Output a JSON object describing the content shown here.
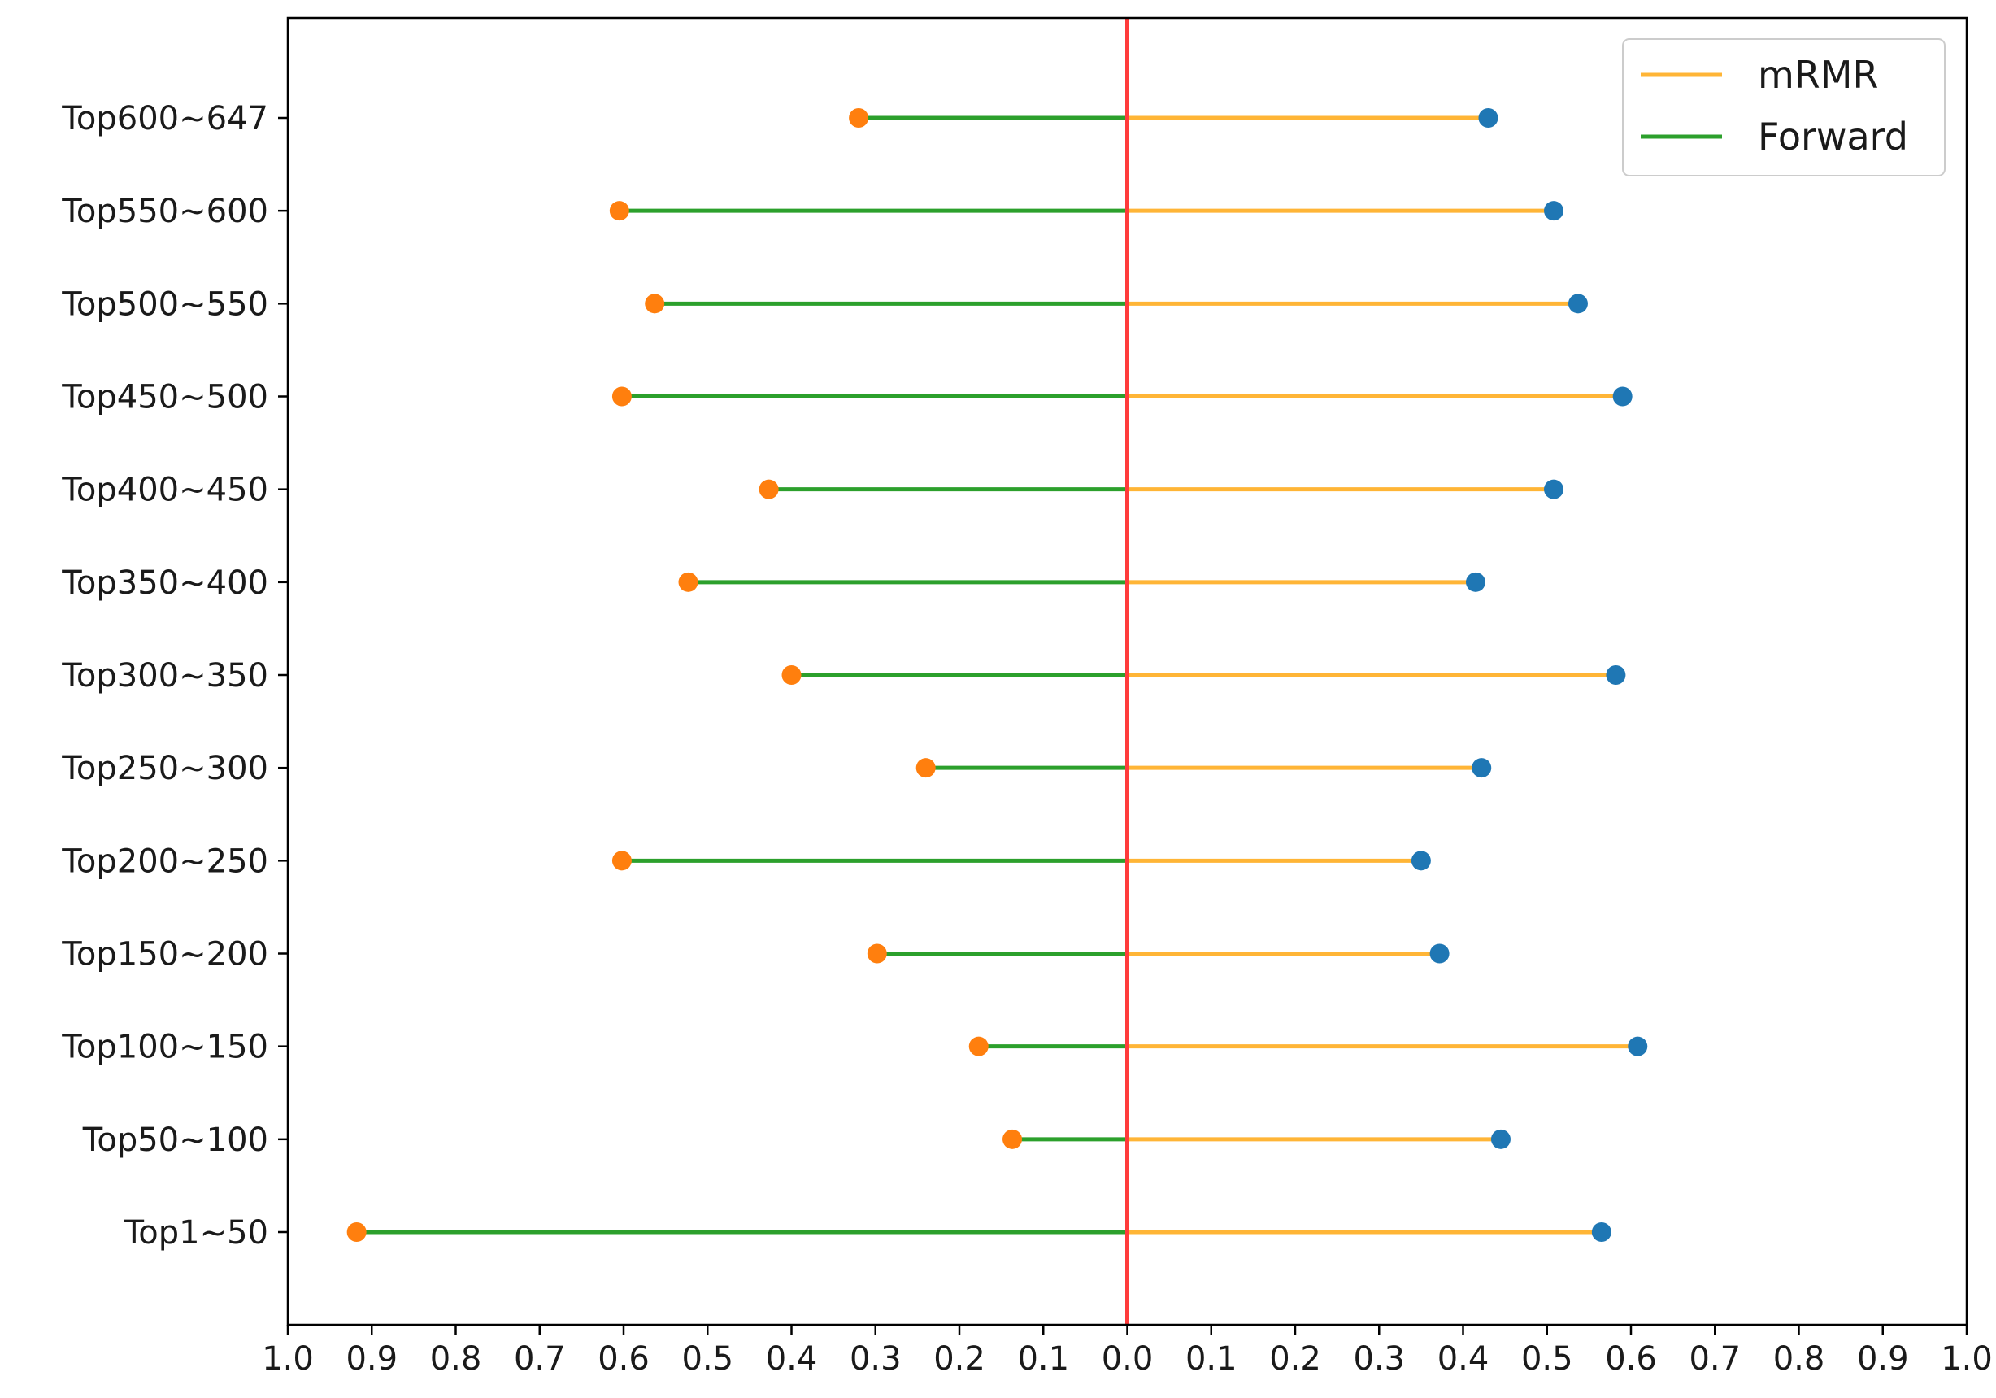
{
  "chart_data": {
    "type": "dumbbell",
    "categories": [
      "Top1~50",
      "Top50~100",
      "Top100~150",
      "Top150~200",
      "Top200~250",
      "Top250~300",
      "Top300~350",
      "Top350~400",
      "Top400~450",
      "Top450~500",
      "Top500~550",
      "Top550~600",
      "Top600~647"
    ],
    "series": [
      {
        "name": "mRMR",
        "side": "right",
        "line_color": "#ffb536",
        "marker_color": "#1f77b4",
        "values": [
          0.565,
          0.445,
          0.608,
          0.372,
          0.35,
          0.422,
          0.582,
          0.415,
          0.508,
          0.59,
          0.537,
          0.508,
          0.43
        ]
      },
      {
        "name": "Forward",
        "side": "left",
        "line_color": "#2ca02c",
        "marker_color": "#ff7f0e",
        "values": [
          0.918,
          0.137,
          0.177,
          0.298,
          0.602,
          0.24,
          0.4,
          0.523,
          0.427,
          0.602,
          0.563,
          0.605,
          0.32
        ]
      }
    ],
    "x_ticks": [
      "1.0",
      "0.9",
      "0.8",
      "0.7",
      "0.6",
      "0.5",
      "0.4",
      "0.3",
      "0.2",
      "0.1",
      "0.0",
      "0.1",
      "0.2",
      "0.3",
      "0.4",
      "0.5",
      "0.6",
      "0.7",
      "0.8",
      "0.9",
      "1.0"
    ],
    "xlim": [
      -1.0,
      1.0
    ],
    "center_line_color": "#ff3b3b",
    "legend_position": "upper right",
    "grid": false
  }
}
